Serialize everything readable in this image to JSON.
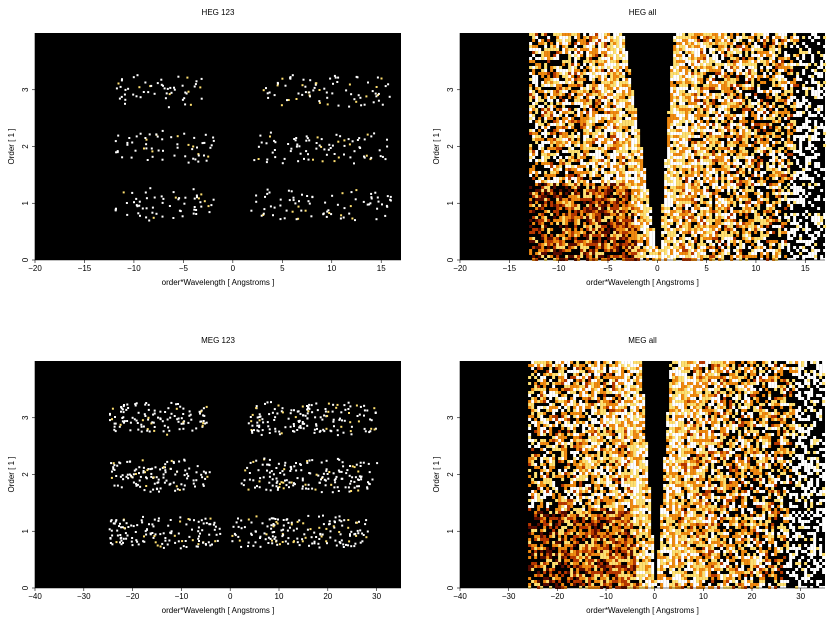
{
  "chart_data": [
    {
      "type": "heatmap",
      "title": "HEG 123",
      "xlabel": "order*Wavelength [ Angstroms ]",
      "ylabel": "Order [ 1 ]",
      "xlim": [
        -20,
        17
      ],
      "ylim": [
        0,
        4
      ],
      "xticks": [
        -20,
        -15,
        -10,
        -5,
        0,
        5,
        10,
        15
      ],
      "yticks": [
        0,
        1,
        2,
        3
      ],
      "background": "#000000",
      "colormap": [
        "#000000",
        "#5a0c00",
        "#b83800",
        "#f08a10",
        "#ffe070",
        "#ffffff"
      ],
      "bands": [
        {
          "order": 1,
          "x_ranges": [
            [
              -12,
              -2
            ],
            [
              1.5,
              8
            ],
            [
              9,
              16
            ]
          ]
        },
        {
          "order": 2,
          "x_ranges": [
            [
              -12,
              -2
            ],
            [
              2,
              8
            ],
            [
              8,
              16
            ]
          ]
        },
        {
          "order": 3,
          "x_ranges": [
            [
              -12,
              -3
            ],
            [
              3,
              8
            ],
            [
              8,
              16
            ]
          ]
        }
      ]
    },
    {
      "type": "heatmap",
      "title": "HEG all",
      "xlabel": "order*Wavelength [ Angstroms ]",
      "ylabel": "Order [ 1 ]",
      "xlim": [
        -20,
        17
      ],
      "ylim": [
        0,
        4
      ],
      "xticks": [
        -20,
        -15,
        -10,
        -5,
        0,
        5,
        10,
        15
      ],
      "yticks": [
        0,
        1,
        2,
        3
      ],
      "background": "#000000",
      "colormap": [
        "#000000",
        "#5a0c00",
        "#b83800",
        "#f08a10",
        "#ffe070",
        "#ffffff"
      ],
      "data_xlim": [
        -13,
        17
      ],
      "empty_wedge": {
        "apex_x": 0,
        "top_x": [
          -3.5,
          1.5
        ]
      }
    },
    {
      "type": "heatmap",
      "title": "MEG 123",
      "xlabel": "order*Wavelength [ Angstroms ]",
      "ylabel": "Order [ 1 ]",
      "xlim": [
        -40,
        35
      ],
      "ylim": [
        0,
        4
      ],
      "xticks": [
        -40,
        -30,
        -20,
        -10,
        0,
        10,
        20,
        30
      ],
      "yticks": [
        0,
        1,
        2,
        3
      ],
      "background": "#000000",
      "colormap": [
        "#000000",
        "#5a0c00",
        "#b83800",
        "#f08a10",
        "#ffe070",
        "#ffffff"
      ],
      "bands": [
        {
          "order": 1,
          "x_ranges": [
            [
              -25,
              -2
            ],
            [
              0,
              10
            ],
            [
              10,
              28
            ]
          ]
        },
        {
          "order": 2,
          "x_ranges": [
            [
              -25,
              -4
            ],
            [
              2,
              12
            ],
            [
              12,
              30
            ]
          ]
        },
        {
          "order": 3,
          "x_ranges": [
            [
              -25,
              -5
            ],
            [
              3,
              14
            ],
            [
              14,
              30
            ]
          ]
        }
      ]
    },
    {
      "type": "heatmap",
      "title": "MEG all",
      "xlabel": "order*Wavelength [ Angstroms ]",
      "ylabel": "Order [ 1 ]",
      "xlim": [
        -40,
        35
      ],
      "ylim": [
        0,
        4
      ],
      "xticks": [
        -40,
        -30,
        -20,
        -10,
        0,
        10,
        20,
        30
      ],
      "yticks": [
        0,
        1,
        2,
        3
      ],
      "background": "#000000",
      "colormap": [
        "#000000",
        "#5a0c00",
        "#b83800",
        "#f08a10",
        "#ffe070",
        "#ffffff"
      ],
      "data_xlim": [
        -26,
        35
      ],
      "empty_wedge": {
        "apex_x": 0,
        "top_x": [
          -3,
          3
        ]
      }
    }
  ]
}
